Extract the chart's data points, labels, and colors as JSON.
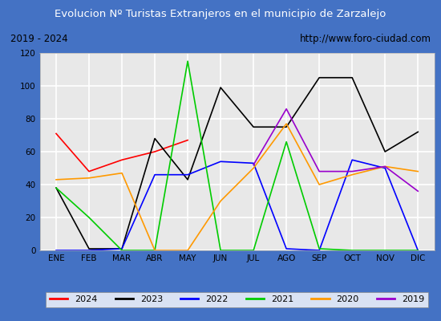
{
  "title": "Evolucion Nº Turistas Extranjeros en el municipio de Zarzalejo",
  "subtitle_left": "2019 - 2024",
  "subtitle_right": "http://www.foro-ciudad.com",
  "title_bg_color": "#4472c4",
  "title_text_color": "#ffffff",
  "months": [
    "ENE",
    "FEB",
    "MAR",
    "ABR",
    "MAY",
    "JUN",
    "JUL",
    "AGO",
    "SEP",
    "OCT",
    "NOV",
    "DIC"
  ],
  "ylim": [
    0,
    120
  ],
  "yticks": [
    0,
    20,
    40,
    60,
    80,
    100,
    120
  ],
  "series": {
    "2024": {
      "color": "#ff0000",
      "data": [
        71,
        48,
        55,
        60,
        67,
        null,
        null,
        null,
        null,
        null,
        null,
        null
      ]
    },
    "2023": {
      "color": "#000000",
      "data": [
        38,
        1,
        1,
        68,
        43,
        99,
        75,
        75,
        105,
        105,
        60,
        72
      ]
    },
    "2022": {
      "color": "#0000ff",
      "data": [
        0,
        0,
        1,
        46,
        46,
        54,
        53,
        1,
        0,
        55,
        50,
        0
      ]
    },
    "2021": {
      "color": "#00cc00",
      "data": [
        38,
        20,
        0,
        0,
        115,
        0,
        0,
        66,
        1,
        0,
        0,
        0
      ]
    },
    "2020": {
      "color": "#ff9900",
      "data": [
        43,
        44,
        47,
        0,
        0,
        30,
        50,
        77,
        40,
        46,
        51,
        48
      ]
    },
    "2019": {
      "color": "#9900cc",
      "data": [
        null,
        null,
        null,
        null,
        null,
        null,
        52,
        86,
        48,
        48,
        51,
        36
      ]
    }
  },
  "legend_order": [
    "2024",
    "2023",
    "2022",
    "2021",
    "2020",
    "2019"
  ],
  "plot_bg_color": "#e8e8e8",
  "grid_color": "#ffffff",
  "outer_bg_color": "#4472c4",
  "inner_bg_color": "#ffffff"
}
